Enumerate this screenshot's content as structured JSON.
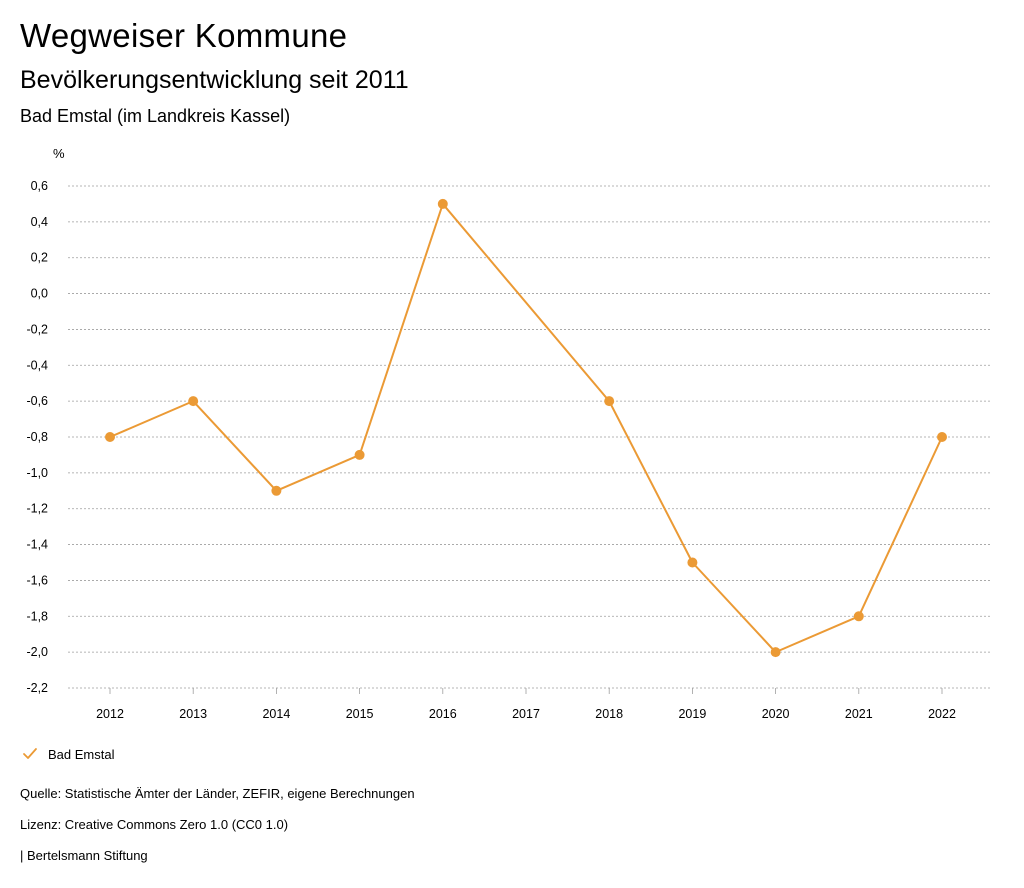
{
  "header": {
    "app_title": "Wegweiser Kommune",
    "page_title": "Bevölkerungsentwicklung seit 2011",
    "region": "Bad Emstal (im Landkreis Kassel)"
  },
  "colors": {
    "series": "#EB9A35",
    "grid": "#9E9E9E",
    "axis_text": "#000000"
  },
  "chart_data": {
    "type": "line",
    "title": "Bevölkerungsentwicklung seit 2011",
    "subtitle": "Bad Emstal (im Landkreis Kassel)",
    "ylabel": "%",
    "xlabel": "",
    "grid": true,
    "legend_position": "bottom-left",
    "ylim": [
      -2.2,
      0.6
    ],
    "yticks": [
      "0,6",
      "0,4",
      "0,2",
      "0,0",
      "-0,2",
      "-0,4",
      "-0,6",
      "-0,8",
      "-1,0",
      "-1,2",
      "-1,4",
      "-1,6",
      "-1,8",
      "-2,0",
      "-2,2"
    ],
    "ytick_values": [
      0.6,
      0.4,
      0.2,
      0.0,
      -0.2,
      -0.4,
      -0.6,
      -0.8,
      -1.0,
      -1.2,
      -1.4,
      -1.6,
      -1.8,
      -2.0,
      -2.2
    ],
    "categories": [
      "2012",
      "2013",
      "2014",
      "2015",
      "2016",
      "2017",
      "2018",
      "2019",
      "2020",
      "2021",
      "2022"
    ],
    "series": [
      {
        "name": "Bad Emstal",
        "values": [
          -0.8,
          -0.6,
          -1.1,
          -0.9,
          0.5,
          null,
          -0.6,
          -1.5,
          -2.0,
          -1.8,
          -0.8
        ]
      }
    ]
  },
  "legend": {
    "items": [
      {
        "label": "Bad Emstal",
        "icon": "check-icon"
      }
    ]
  },
  "footer": {
    "source": "Quelle: Statistische Ämter der Länder, ZEFIR, eigene Berechnungen",
    "license": "Lizenz: Creative Commons Zero 1.0 (CC0 1.0)",
    "publisher": "| Bertelsmann Stiftung"
  }
}
